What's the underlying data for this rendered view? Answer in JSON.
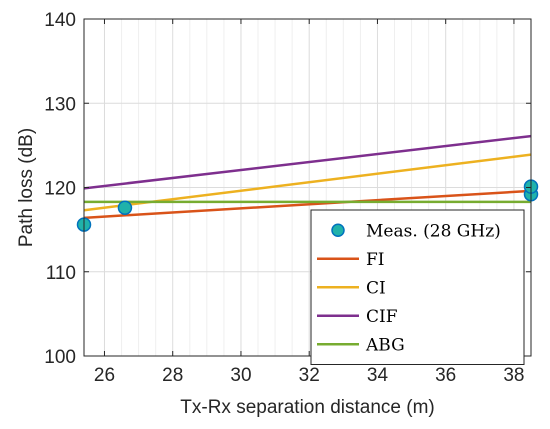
{
  "chart_data": {
    "type": "line",
    "xlabel": "Tx-Rx separation distance (m)",
    "ylabel": "Path loss (dB)",
    "xlim": [
      25.4,
      38.5
    ],
    "ylim": [
      100,
      140
    ],
    "xticks": [
      26,
      28,
      30,
      32,
      34,
      36,
      38
    ],
    "yticks": [
      100,
      110,
      120,
      130,
      140
    ],
    "grid": true,
    "legend_position": "bottom-right",
    "series": [
      {
        "name": "Meas. (28 GHz)",
        "kind": "scatter",
        "color": "#0072BD",
        "face_color": "#20B2AA",
        "points": [
          {
            "x": 25.4,
            "y": 115.6
          },
          {
            "x": 26.6,
            "y": 117.6
          },
          {
            "x": 38.5,
            "y": 119.2
          },
          {
            "x": 38.5,
            "y": 120.1
          }
        ]
      },
      {
        "name": "FI",
        "kind": "line",
        "color": "#D95319",
        "points": [
          {
            "x": 25.4,
            "y": 116.4
          },
          {
            "x": 38.5,
            "y": 119.6
          }
        ]
      },
      {
        "name": "CI",
        "kind": "line",
        "color": "#EDB120",
        "points": [
          {
            "x": 25.4,
            "y": 117.3
          },
          {
            "x": 38.5,
            "y": 123.9
          }
        ]
      },
      {
        "name": "CIF",
        "kind": "line",
        "color": "#7E2F8E",
        "points": [
          {
            "x": 25.4,
            "y": 119.9
          },
          {
            "x": 38.5,
            "y": 126.1
          }
        ]
      },
      {
        "name": "ABG",
        "kind": "line",
        "color": "#77AC30",
        "points": [
          {
            "x": 25.4,
            "y": 118.3
          },
          {
            "x": 38.5,
            "y": 118.3
          }
        ]
      }
    ]
  }
}
